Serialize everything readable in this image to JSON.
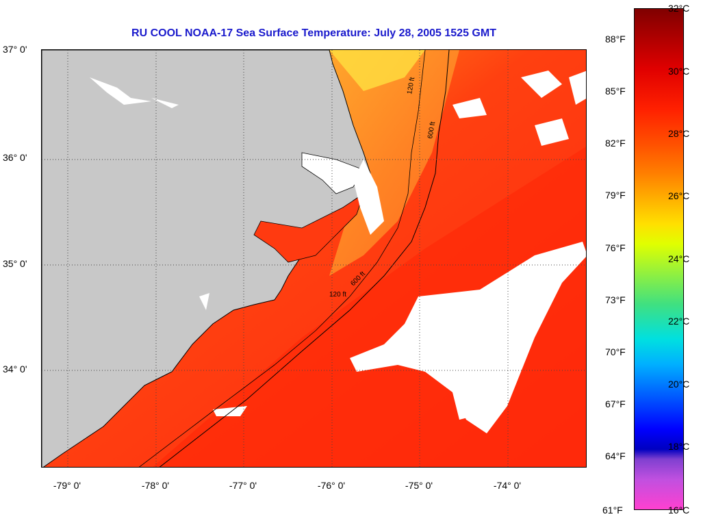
{
  "title": "RU COOL  NOAA-17  Sea Surface Temperature:  July 28, 2005 1525 GMT",
  "latitude_labels": [
    "37° 0'",
    "36° 0'",
    "35° 0'",
    "34° 0'"
  ],
  "longitude_labels": [
    "-79° 0'",
    "-78° 0'",
    "-77° 0'",
    "-76° 0'",
    "-75° 0'",
    "-74° 0'"
  ],
  "colorbar": {
    "celsius": [
      "32°C",
      "30°C",
      "28°C",
      "26°C",
      "24°C",
      "22°C",
      "20°C",
      "18°C",
      "16°C"
    ],
    "fahrenheit": [
      "88°F",
      "85°F",
      "82°F",
      "79°F",
      "76°F",
      "73°F",
      "70°F",
      "67°F",
      "64°F",
      "61°F"
    ]
  },
  "contour_labels": [
    "120 ft",
    "600 ft"
  ],
  "colors": {
    "land": "#c8c8c8",
    "cloud": "#ffffff",
    "warm_water": "#ff3010",
    "shelf_water": "#ff8a10",
    "title": "#1a1acc"
  }
}
